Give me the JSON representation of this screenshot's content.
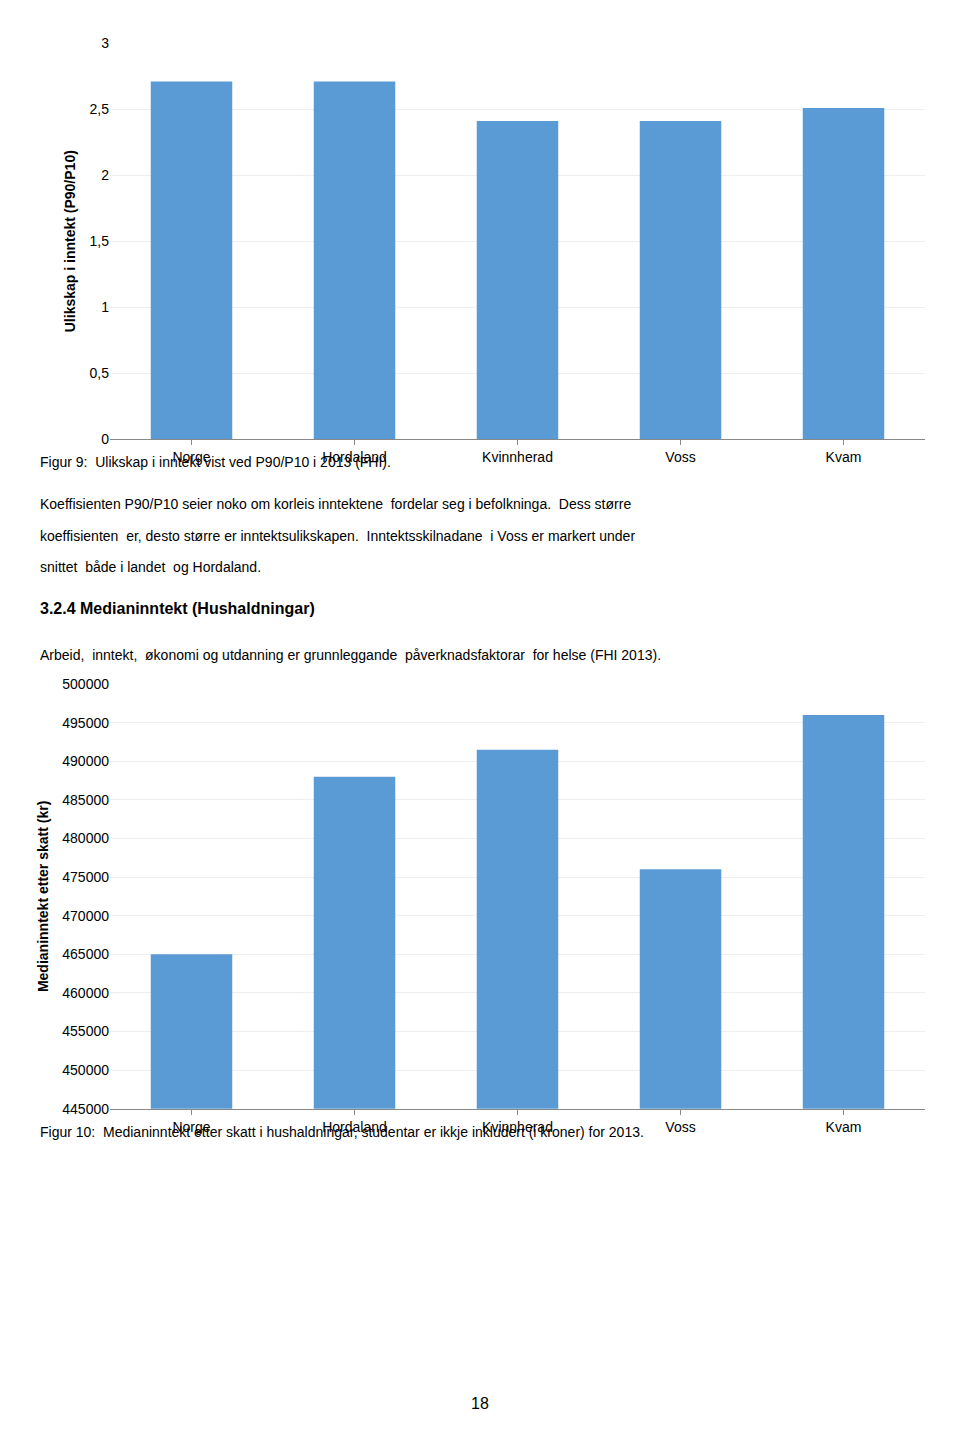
{
  "chart_data": [
    {
      "type": "bar",
      "categories": [
        "Norge",
        "Hordaland",
        "Kvinnherad",
        "Voss",
        "Kvam"
      ],
      "values": [
        2.71,
        2.71,
        2.41,
        2.41,
        2.51
      ],
      "color": "#5B9BD5",
      "ylabel": "Ulikskap i inntekt (P90/P10)",
      "ylim": [
        0,
        3
      ],
      "yticks": [
        0,
        {
          "value": 0.5,
          "label": "0,5"
        },
        1,
        {
          "value": 1.5,
          "label": "1,5"
        },
        2,
        {
          "value": 2.5,
          "label": "2,5"
        },
        3
      ],
      "grid": true,
      "caption": "Figur 9:  Ulikskap i inntekt vist ved P90/P10 i 2013 (FHI)."
    },
    {
      "type": "bar",
      "categories": [
        "Norge",
        "Hordaland",
        "Kvinnherad",
        "Voss",
        "Kvam"
      ],
      "values": [
        465000,
        488000,
        491500,
        476000,
        496000
      ],
      "color": "#5B9BD5",
      "ylabel": "Medianinntekt etter skatt (kr)",
      "ylim": [
        445000,
        500000
      ],
      "yticks": [
        445000,
        450000,
        455000,
        460000,
        465000,
        470000,
        475000,
        480000,
        485000,
        490000,
        495000,
        500000
      ],
      "grid": true,
      "caption": "Figur 10:  Medianinntekt etter skatt i hushaldningar, studentar er ikkje inkludert (i kroner) for 2013."
    }
  ],
  "text_block": [
    "Koeffisienten P90/P10 seier noko om korleis inntektene  fordelar seg i befolkninga.  Dess større",
    "koeffisienten  er, desto større er inntektsulikskapen.  Inntektsskilnadane  i Voss er markert under",
    "snittet  både i landet  og Hordaland."
  ],
  "section_title": "3.2.4 Medianinntekt (Hushaldningar)",
  "text_block2": "Arbeid,  inntekt,  økonomi og utdanning er grunnleggande  påverknadsfaktorar  for helse (FHI 2013).",
  "page_number": "18"
}
